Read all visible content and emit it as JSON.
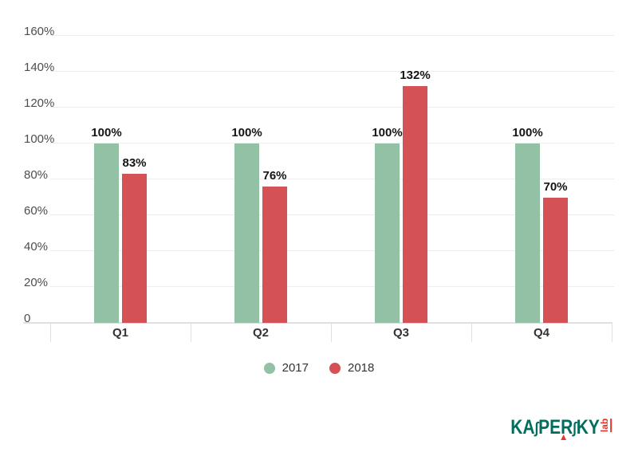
{
  "chart_data": {
    "type": "bar",
    "title": "",
    "categories": [
      "Q1",
      "Q2",
      "Q3",
      "Q4"
    ],
    "series": [
      {
        "name": "2017",
        "color": "#92c1a5",
        "values": [
          100,
          100,
          100,
          100
        ],
        "labels": [
          "100%",
          "100%",
          "100%",
          "100%"
        ]
      },
      {
        "name": "2018",
        "color": "#d45156",
        "values": [
          83,
          76,
          132,
          70
        ],
        "labels": [
          "83%",
          "76%",
          "132%",
          "70%"
        ]
      }
    ],
    "ylim": [
      0,
      160
    ],
    "yticks": [
      0,
      20,
      40,
      60,
      80,
      100,
      120,
      140,
      160
    ],
    "ytick_labels": [
      "0",
      "20%",
      "40%",
      "60%",
      "80%",
      "100%",
      "120%",
      "140%",
      "160%"
    ],
    "grid": true,
    "legend_position": "bottom"
  },
  "legend": {
    "items": [
      {
        "label": "2017",
        "color": "#92c1a5"
      },
      {
        "label": "2018",
        "color": "#d45156"
      }
    ]
  },
  "logo": {
    "parts": [
      "KA",
      "∫",
      "PER",
      "∫",
      "KY"
    ],
    "plain_text": "KASPERSKY",
    "lab": "lab",
    "teal_color": "#006d5f",
    "red_color": "#e0372e"
  }
}
